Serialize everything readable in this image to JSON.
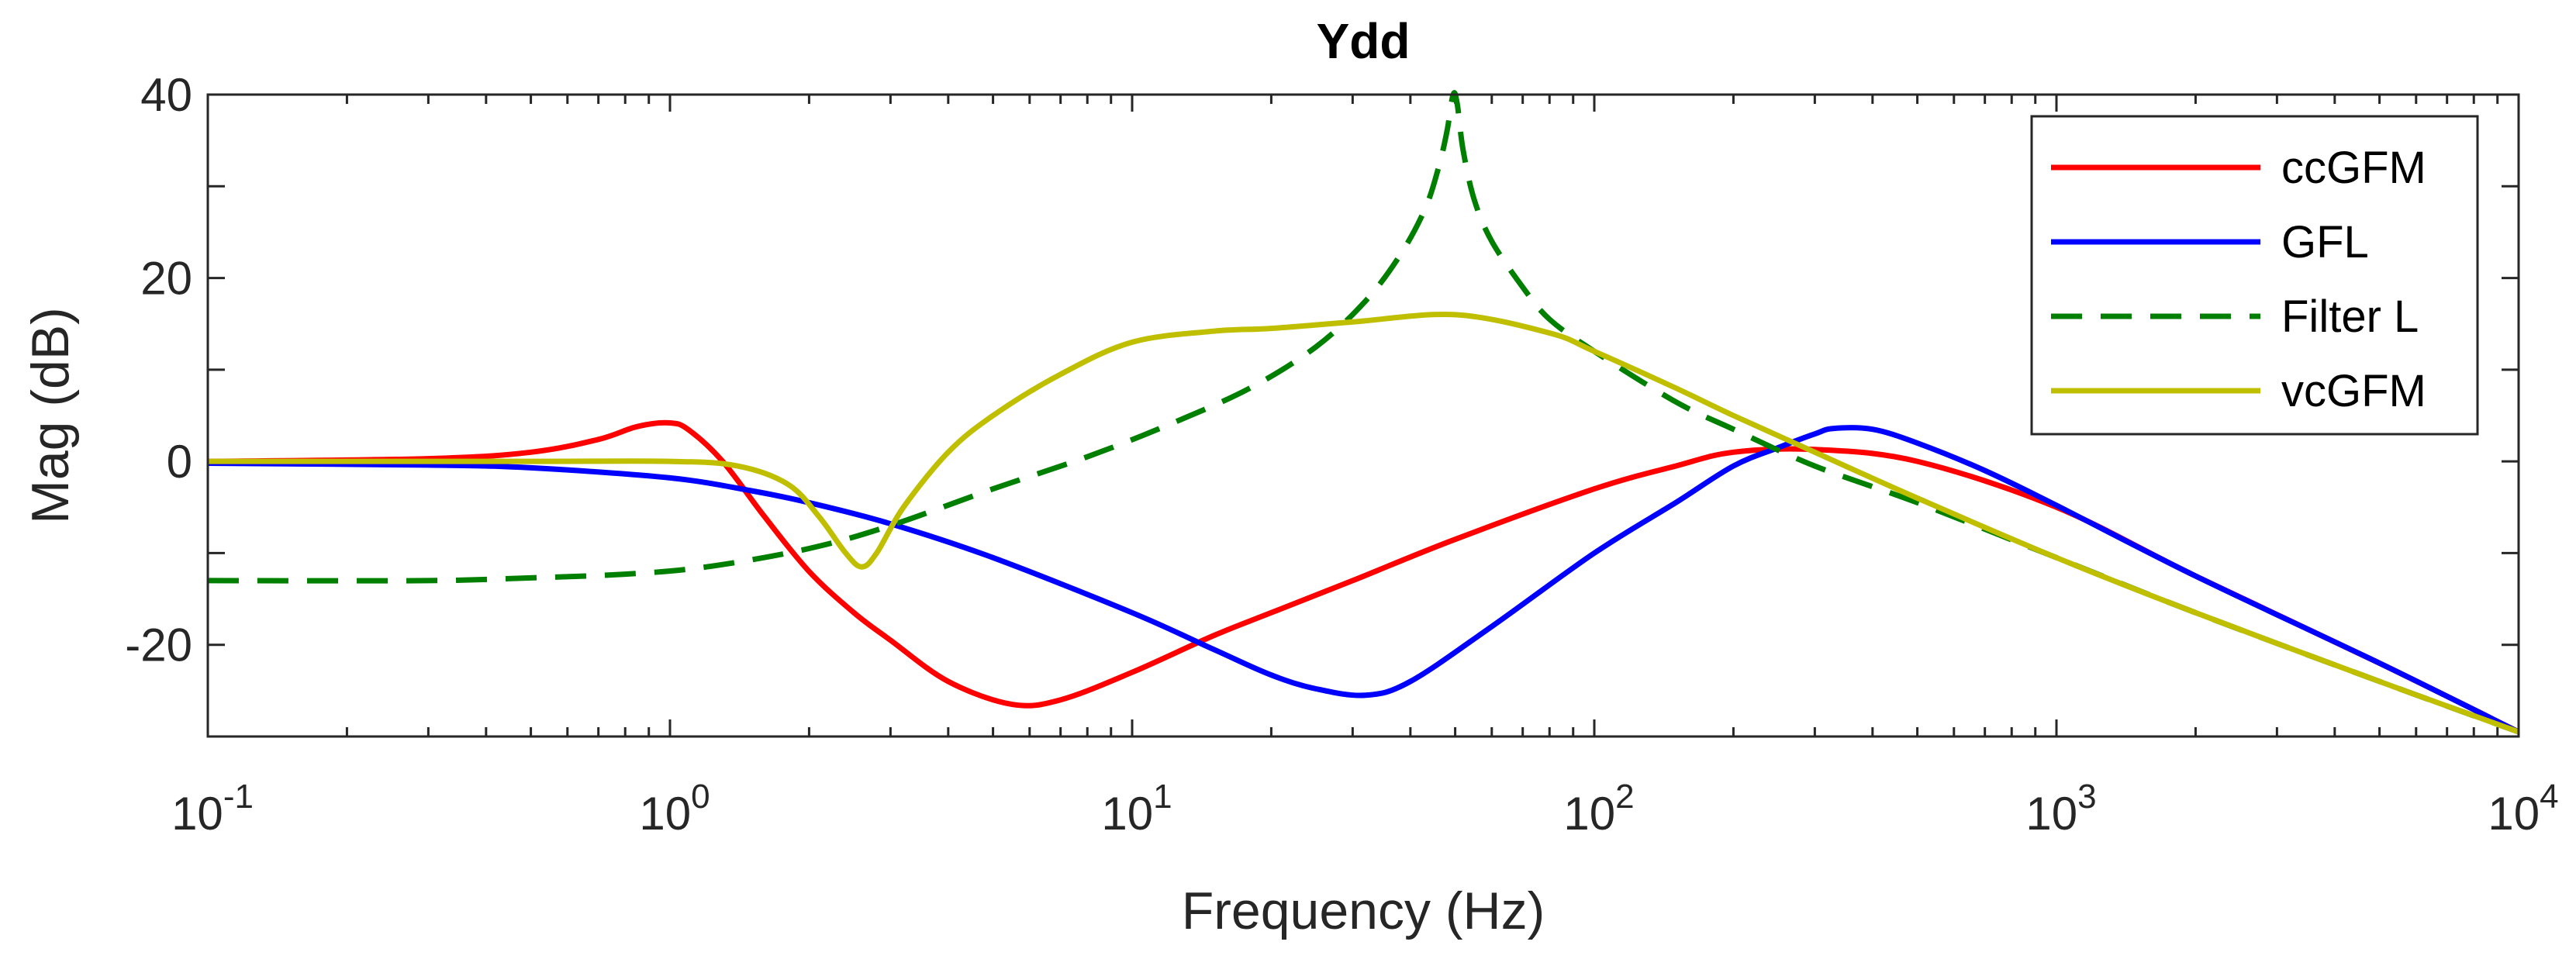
{
  "chart_data": {
    "type": "line",
    "title": "Ydd",
    "xlabel": "Frequency (Hz)",
    "ylabel": "Mag (dB)",
    "xscale": "log",
    "xlim": [
      0.1,
      10000
    ],
    "ylim": [
      -30,
      40
    ],
    "xticks": [
      {
        "value": 0.1,
        "base": "10",
        "exp": "-1"
      },
      {
        "value": 1,
        "base": "10",
        "exp": "0"
      },
      {
        "value": 10,
        "base": "10",
        "exp": "1"
      },
      {
        "value": 100,
        "base": "10",
        "exp": "2"
      },
      {
        "value": 1000,
        "base": "10",
        "exp": "3"
      },
      {
        "value": 10000,
        "base": "10",
        "exp": "4"
      }
    ],
    "yticks": [
      {
        "value": -20,
        "label": "-20"
      },
      {
        "value": 0,
        "label": "0"
      },
      {
        "value": 20,
        "label": "20"
      },
      {
        "value": 40,
        "label": "40"
      }
    ],
    "legend_position": "top-right",
    "series": [
      {
        "name": "ccGFM",
        "color": "#ff0000",
        "dash": "solid",
        "x": [
          0.1,
          0.3,
          0.5,
          0.7,
          0.85,
          1.0,
          1.1,
          1.3,
          1.6,
          2.0,
          2.5,
          3.0,
          4.0,
          5.5,
          7.0,
          10,
          15,
          20,
          30,
          50,
          100,
          150,
          200,
          300,
          500,
          1000,
          2000,
          5000,
          10000
        ],
        "y": [
          0,
          0.3,
          1.0,
          2.4,
          3.8,
          4.2,
          3.4,
          0,
          -6,
          -12,
          -16.5,
          -19.5,
          -24,
          -26.5,
          -26,
          -23,
          -19,
          -16.5,
          -13,
          -8.5,
          -3,
          -0.5,
          1,
          1.3,
          0,
          -5,
          -12.5,
          -22,
          -29.5
        ]
      },
      {
        "name": "GFL",
        "color": "#0000ff",
        "dash": "solid",
        "x": [
          0.1,
          0.3,
          0.5,
          1,
          1.5,
          2,
          3,
          5,
          10,
          15,
          20,
          25,
          32,
          40,
          60,
          100,
          150,
          200,
          250,
          300,
          330,
          400,
          500,
          700,
          1000,
          2000,
          5000,
          10000
        ],
        "y": [
          -0.2,
          -0.4,
          -0.7,
          -1.8,
          -3.2,
          -4.5,
          -6.8,
          -10.5,
          -16.5,
          -20.5,
          -23.3,
          -24.8,
          -25.5,
          -24,
          -18,
          -10,
          -4.5,
          -0.5,
          1.5,
          3,
          3.6,
          3.5,
          2,
          -1,
          -4.8,
          -12.5,
          -22,
          -29.5
        ]
      },
      {
        "name": "Filter L",
        "color": "#007f00",
        "dash": "dashed",
        "x": [
          0.1,
          0.3,
          0.5,
          0.8,
          1.2,
          2,
          3,
          5,
          8,
          12,
          18,
          25,
          32,
          38,
          43,
          46,
          48,
          49.5,
          50.5,
          52,
          55,
          60,
          70,
          80,
          100,
          150,
          200,
          300,
          500,
          1000,
          2000,
          5000,
          10000
        ],
        "y": [
          -13,
          -13,
          -12.7,
          -12.3,
          -11.5,
          -9.5,
          -7,
          -3,
          0.5,
          4,
          8,
          12.5,
          17.5,
          22.5,
          27.5,
          32,
          36,
          40,
          39,
          34,
          28.5,
          24,
          19,
          15.5,
          12,
          6.5,
          3.5,
          -0.5,
          -4.5,
          -10.5,
          -16.5,
          -24,
          -29.5
        ]
      },
      {
        "name": "vcGFM",
        "color": "#bfbf00",
        "dash": "solid",
        "x": [
          0.1,
          0.5,
          1.0,
          1.4,
          1.8,
          2.1,
          2.4,
          2.6,
          2.8,
          3.2,
          4.0,
          5.0,
          7.0,
          10,
          15,
          20,
          30,
          50,
          80,
          100,
          150,
          200,
          300,
          500,
          1000,
          2000,
          5000,
          10000
        ],
        "y": [
          0,
          0,
          0,
          -0.5,
          -2.5,
          -6,
          -10,
          -11.5,
          -10,
          -5,
          1,
          5,
          9.5,
          13,
          14.2,
          14.5,
          15.2,
          16,
          14,
          12,
          8,
          5,
          1,
          -4,
          -10.5,
          -16.5,
          -24,
          -29.5
        ]
      }
    ]
  }
}
